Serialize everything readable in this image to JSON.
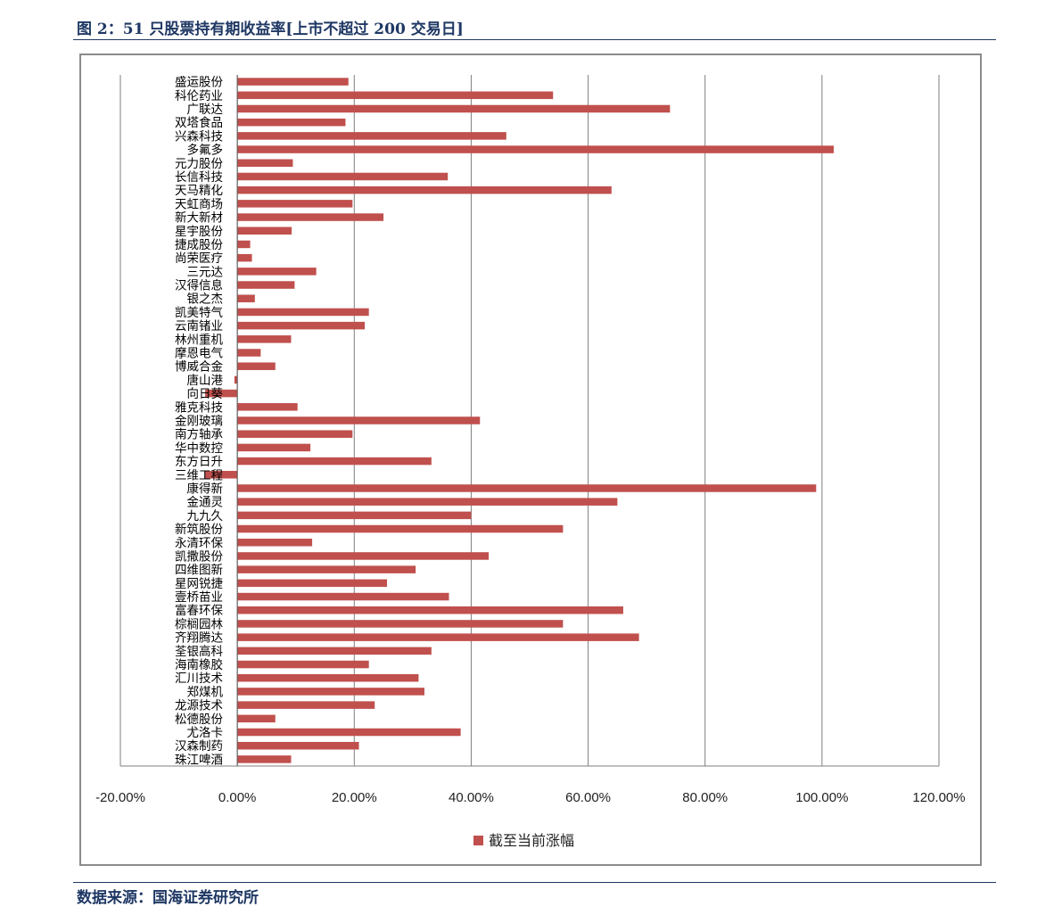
{
  "header": {
    "title": "图 2：51 只股票持有期收益率[上市不超过 200 交易日]"
  },
  "footer": {
    "source": "数据来源：国海证券研究所"
  },
  "colors": {
    "accent": "#1f3864",
    "bar": "#c0504d",
    "grid": "#7f7f7f"
  },
  "chart_data": {
    "type": "bar",
    "orientation": "horizontal",
    "categories": [
      "盛运股份",
      "科伦药业",
      "广联达",
      "双塔食品",
      "兴森科技",
      "多氟多",
      "元力股份",
      "长信科技",
      "天马精化",
      "天虹商场",
      "新大新材",
      "星宇股份",
      "捷成股份",
      "尚荣医疗",
      "三元达",
      "汉得信息",
      "银之杰",
      "凯美特气",
      "云南锗业",
      "林州重机",
      "摩恩电气",
      "博威合金",
      "唐山港",
      "向日葵",
      "雅克科技",
      "金刚玻璃",
      "南方轴承",
      "华中数控",
      "东方日升",
      "三维工程",
      "康得新",
      "金通灵",
      "九九久",
      "新筑股份",
      "永清环保",
      "凯撒股份",
      "四维图新",
      "星网锐捷",
      "壹桥苗业",
      "富春环保",
      "棕榈园林",
      "齐翔腾达",
      "荃银高科",
      "海南橡胶",
      "汇川技术",
      "郑煤机",
      "龙源技术",
      "松德股份",
      "尤洛卡",
      "汉森制药",
      "珠江啤酒"
    ],
    "series": [
      {
        "name": "截至当前涨幅",
        "values": [
          0.19,
          0.54,
          0.74,
          0.185,
          0.46,
          1.02,
          0.095,
          0.36,
          0.64,
          0.197,
          0.25,
          0.093,
          0.022,
          0.025,
          0.135,
          0.098,
          0.03,
          0.225,
          0.218,
          0.092,
          0.04,
          0.065,
          -0.005,
          -0.055,
          0.103,
          0.415,
          0.197,
          0.125,
          0.332,
          -0.055,
          0.99,
          0.65,
          0.4,
          0.557,
          0.128,
          0.43,
          0.305,
          0.256,
          0.362,
          0.66,
          0.557,
          0.687,
          0.332,
          0.225,
          0.31,
          0.32,
          0.235,
          0.065,
          0.382,
          0.208,
          0.092
        ]
      }
    ],
    "xlim": [
      -0.2,
      1.2
    ],
    "xticks": [
      "-20.00%",
      "0.00%",
      "20.00%",
      "40.00%",
      "60.00%",
      "80.00%",
      "100.00%",
      "120.00%"
    ],
    "xlabel": "",
    "ylabel": "",
    "grid": "vertical",
    "legend": "bottom"
  }
}
